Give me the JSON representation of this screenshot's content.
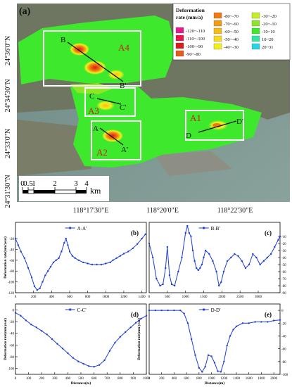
{
  "figure_label": "(a)",
  "map": {
    "lat_labels": [
      "24°36'0\"N",
      "24°34'30\"N",
      "24°33'0\"N",
      "24°31'30\"N"
    ],
    "lon_labels": [
      "118°17'30\"E",
      "118°20'0\"E",
      "118°22'30\"E"
    ],
    "scale": {
      "ticks": [
        "0",
        "0.5",
        "1",
        "2",
        "3",
        "4"
      ],
      "unit": "km"
    },
    "areas": [
      {
        "id": "A1",
        "line": [
          "D",
          "D'"
        ]
      },
      {
        "id": "A2",
        "line": [
          "A",
          "A'"
        ]
      },
      {
        "id": "A3",
        "line": [
          "C",
          "C'"
        ]
      },
      {
        "id": "A4",
        "line": [
          "B",
          "B'"
        ]
      }
    ],
    "legend": {
      "title_line1": "Deformation",
      "title_line2": "rate (mm/a)",
      "items": [
        {
          "label": "-120 — -110",
          "color": "#e8198c"
        },
        {
          "label": "-110 — -100",
          "color": "#e8164f"
        },
        {
          "label": "-100 — -90",
          "color": "#e01a1a"
        },
        {
          "label": "-90 — -80",
          "color": "#e65a1a"
        },
        {
          "label": "-80 — -70",
          "color": "#ee7a12"
        },
        {
          "label": "-70 — -60",
          "color": "#f29a12"
        },
        {
          "label": "-60 — -50",
          "color": "#f7bb16"
        },
        {
          "label": "-50 — -40",
          "color": "#f8da18"
        },
        {
          "label": "-40 — -30",
          "color": "#f2ef1c"
        },
        {
          "label": "-30 — -20",
          "color": "#c5ef24"
        },
        {
          "label": "-20 — -10",
          "color": "#8ee626"
        },
        {
          "label": "-10 — 10",
          "color": "#3ee82c"
        },
        {
          "label": "10 — 20",
          "color": "#2ee6a6"
        },
        {
          "label": "20 — 31",
          "color": "#22d6e6"
        }
      ]
    }
  },
  "chart_data": [
    {
      "panel": "(b)",
      "type": "line",
      "series_name": "A-A'",
      "xlabel": "",
      "ylabel": "Deformation rate(mm/year)",
      "xlim": [
        0,
        1450
      ],
      "ylim": [
        -120,
        10
      ],
      "xticks": [
        0,
        200,
        400,
        600,
        800,
        1000,
        1200,
        1400
      ],
      "yticks": [
        -120,
        -100,
        -80,
        -60,
        -40,
        -20
      ],
      "x": [
        0,
        30,
        60,
        100,
        140,
        180,
        210,
        240,
        270,
        300,
        330,
        360,
        390,
        420,
        450,
        480,
        510,
        540,
        560,
        580,
        600,
        630,
        660,
        700,
        750,
        800,
        850,
        900,
        950,
        1000,
        1050,
        1080,
        1120,
        1160,
        1200,
        1250,
        1300,
        1350,
        1400,
        1440
      ],
      "y": [
        -20,
        -32,
        -44,
        -56,
        -74,
        -92,
        -108,
        -115,
        -112,
        -100,
        -88,
        -80,
        -72,
        -64,
        -60,
        -56,
        -44,
        -28,
        -20,
        -32,
        -44,
        -52,
        -56,
        -60,
        -64,
        -66,
        -68,
        -68,
        -68,
        -66,
        -64,
        -60,
        -56,
        -52,
        -48,
        -44,
        -38,
        -30,
        -20,
        -12
      ]
    },
    {
      "panel": "(c)",
      "type": "line",
      "series_name": "B-B'",
      "xlabel": "",
      "ylabel": "",
      "xlim": [
        0,
        3600
      ],
      "ylim": [
        -90,
        10
      ],
      "xticks": [
        0,
        500,
        1000,
        1500,
        2000,
        2500,
        3000
      ],
      "yticks": [
        -90,
        -80,
        -70,
        -60,
        -50,
        -40,
        -30,
        -20,
        -10
      ],
      "x": [
        0,
        100,
        200,
        300,
        380,
        450,
        500,
        560,
        620,
        700,
        800,
        900,
        1000,
        1050,
        1100,
        1150,
        1200,
        1250,
        1300,
        1350,
        1400,
        1450,
        1500,
        1550,
        1650,
        1750,
        1850,
        1920,
        1980,
        2050,
        2150,
        2250,
        2350,
        2450,
        2550,
        2650,
        2750,
        2850,
        2950,
        3050,
        3150,
        3250,
        3350,
        3450,
        3550,
        3600
      ],
      "y": [
        -20,
        -40,
        -70,
        -80,
        -78,
        -55,
        -25,
        -65,
        -78,
        -80,
        -60,
        -40,
        -5,
        5,
        -5,
        -10,
        -30,
        -45,
        -55,
        -58,
        -55,
        -50,
        -40,
        -30,
        -35,
        -45,
        -60,
        -80,
        -75,
        -60,
        -45,
        -40,
        -35,
        -38,
        -45,
        -55,
        -50,
        -35,
        -40,
        -50,
        -45,
        -40,
        -35,
        -25,
        -15,
        -10
      ]
    },
    {
      "panel": "(d)",
      "type": "line",
      "series_name": "C-C'",
      "xlabel": "Distance(m)",
      "ylabel": "Deformation rate(mm/year)",
      "xlim": [
        0,
        1000
      ],
      "ylim": [
        -110,
        10
      ],
      "xticks": [
        0,
        100,
        200,
        300,
        400,
        500,
        600,
        700,
        800,
        900,
        1000
      ],
      "yticks": [
        -100,
        -80,
        -60,
        -40,
        -20,
        0
      ],
      "x": [
        0,
        40,
        80,
        120,
        160,
        200,
        240,
        280,
        320,
        360,
        400,
        440,
        480,
        520,
        560,
        600,
        640,
        680,
        720,
        760,
        800,
        840,
        880,
        920,
        960,
        1000
      ],
      "y": [
        -5,
        -10,
        -18,
        -25,
        -30,
        -36,
        -42,
        -50,
        -58,
        -66,
        -74,
        -82,
        -88,
        -92,
        -96,
        -97,
        -94,
        -86,
        -70,
        -56,
        -46,
        -38,
        -30,
        -22,
        -15,
        -10
      ]
    },
    {
      "panel": "(e)",
      "type": "line",
      "series_name": "D-D'",
      "xlabel": "Distance(m)",
      "ylabel": "Deformation rate(mm/year)",
      "xlim": [
        0,
        2100
      ],
      "ylim": [
        -100,
        10
      ],
      "xticks": [
        0,
        200,
        400,
        600,
        800,
        1000,
        1200,
        1400,
        1600,
        1800,
        2000
      ],
      "yticks": [
        -100,
        -80,
        -60,
        -40,
        -20,
        0
      ],
      "x": [
        0,
        100,
        200,
        300,
        400,
        500,
        560,
        620,
        680,
        740,
        800,
        850,
        900,
        950,
        1000,
        1050,
        1100,
        1150,
        1200,
        1250,
        1300,
        1350,
        1400,
        1500,
        1600,
        1700,
        1800,
        1900,
        2000,
        2100
      ],
      "y": [
        0,
        0,
        0,
        0,
        0,
        0,
        -5,
        -20,
        -45,
        -70,
        -90,
        -96,
        -88,
        -70,
        -72,
        -82,
        -95,
        -96,
        -80,
        -55,
        -40,
        -30,
        -25,
        -20,
        -20,
        -18,
        -18,
        -18,
        -16,
        -15
      ]
    }
  ]
}
